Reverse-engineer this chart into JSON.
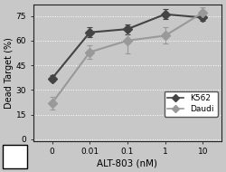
{
  "x_positions": [
    0,
    1,
    2,
    3,
    4
  ],
  "x_labels": [
    "0",
    "0.01",
    "0.1",
    "1",
    "10"
  ],
  "k562_y": [
    37,
    65,
    67,
    76,
    74
  ],
  "k562_yerr": [
    2,
    3,
    3,
    3,
    2
  ],
  "daudi_y": [
    22,
    53,
    60,
    63,
    77
  ],
  "daudi_yerr": [
    4,
    4,
    8,
    5,
    3
  ],
  "k562_color": "#444444",
  "daudi_color": "#999999",
  "ylabel": "Dead Target (%)",
  "xlabel": "ALT-803 (nM)",
  "yticks": [
    0,
    15,
    30,
    45,
    60,
    75
  ],
  "ylim": [
    -1,
    82
  ],
  "legend_labels": [
    "K562",
    "Daudi"
  ],
  "bg_color": "#c8c8c8",
  "plot_bg": "#c8c8c8",
  "fig_bg": "#c8c8c8"
}
